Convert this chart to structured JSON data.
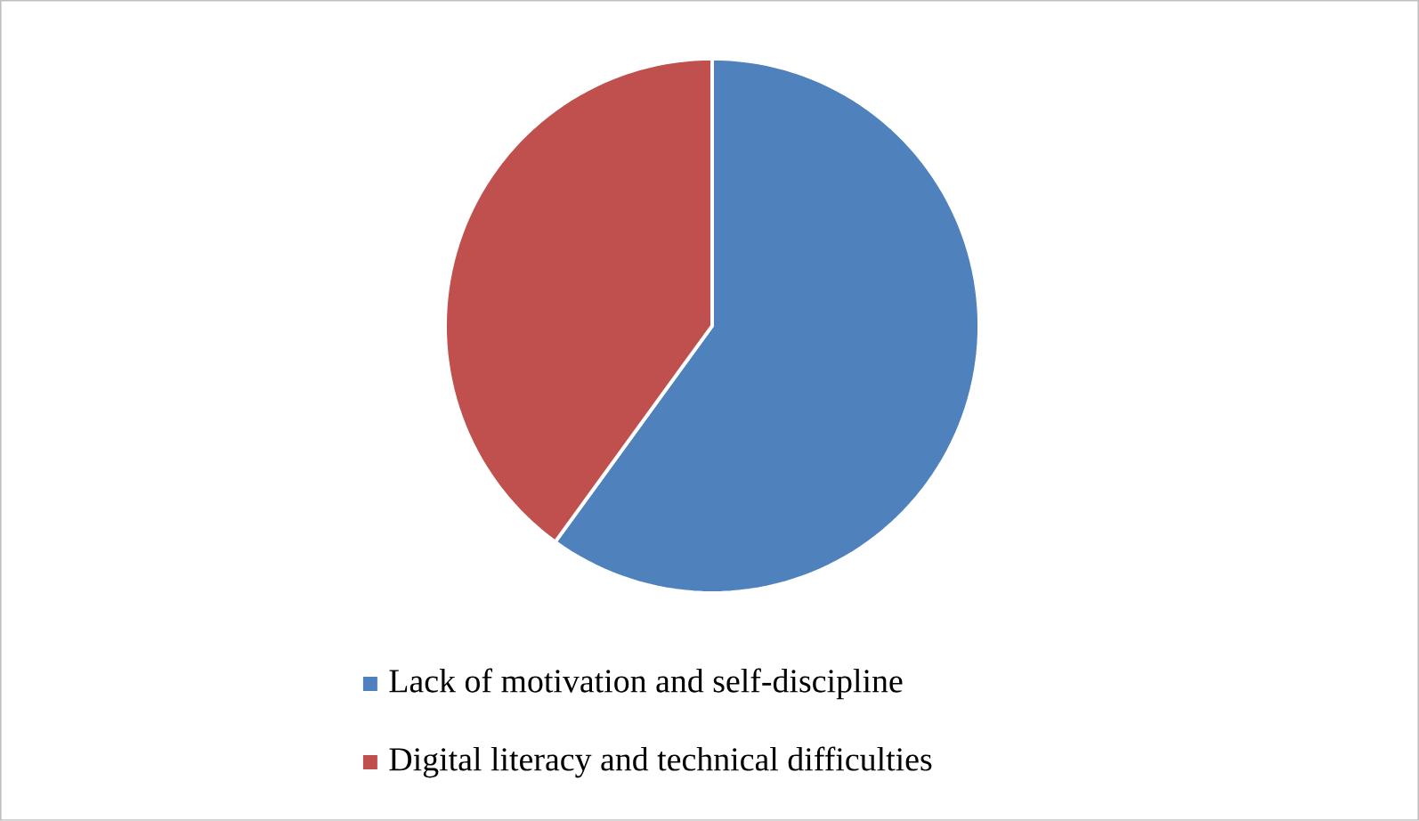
{
  "chart_data": {
    "type": "pie",
    "categories": [
      "Lack of motivation and self-discipline",
      "Digital literacy and technical difficulties"
    ],
    "values": [
      60,
      40
    ],
    "colors": [
      "#4f81bd",
      "#c0504d"
    ],
    "legend": "bottom"
  }
}
